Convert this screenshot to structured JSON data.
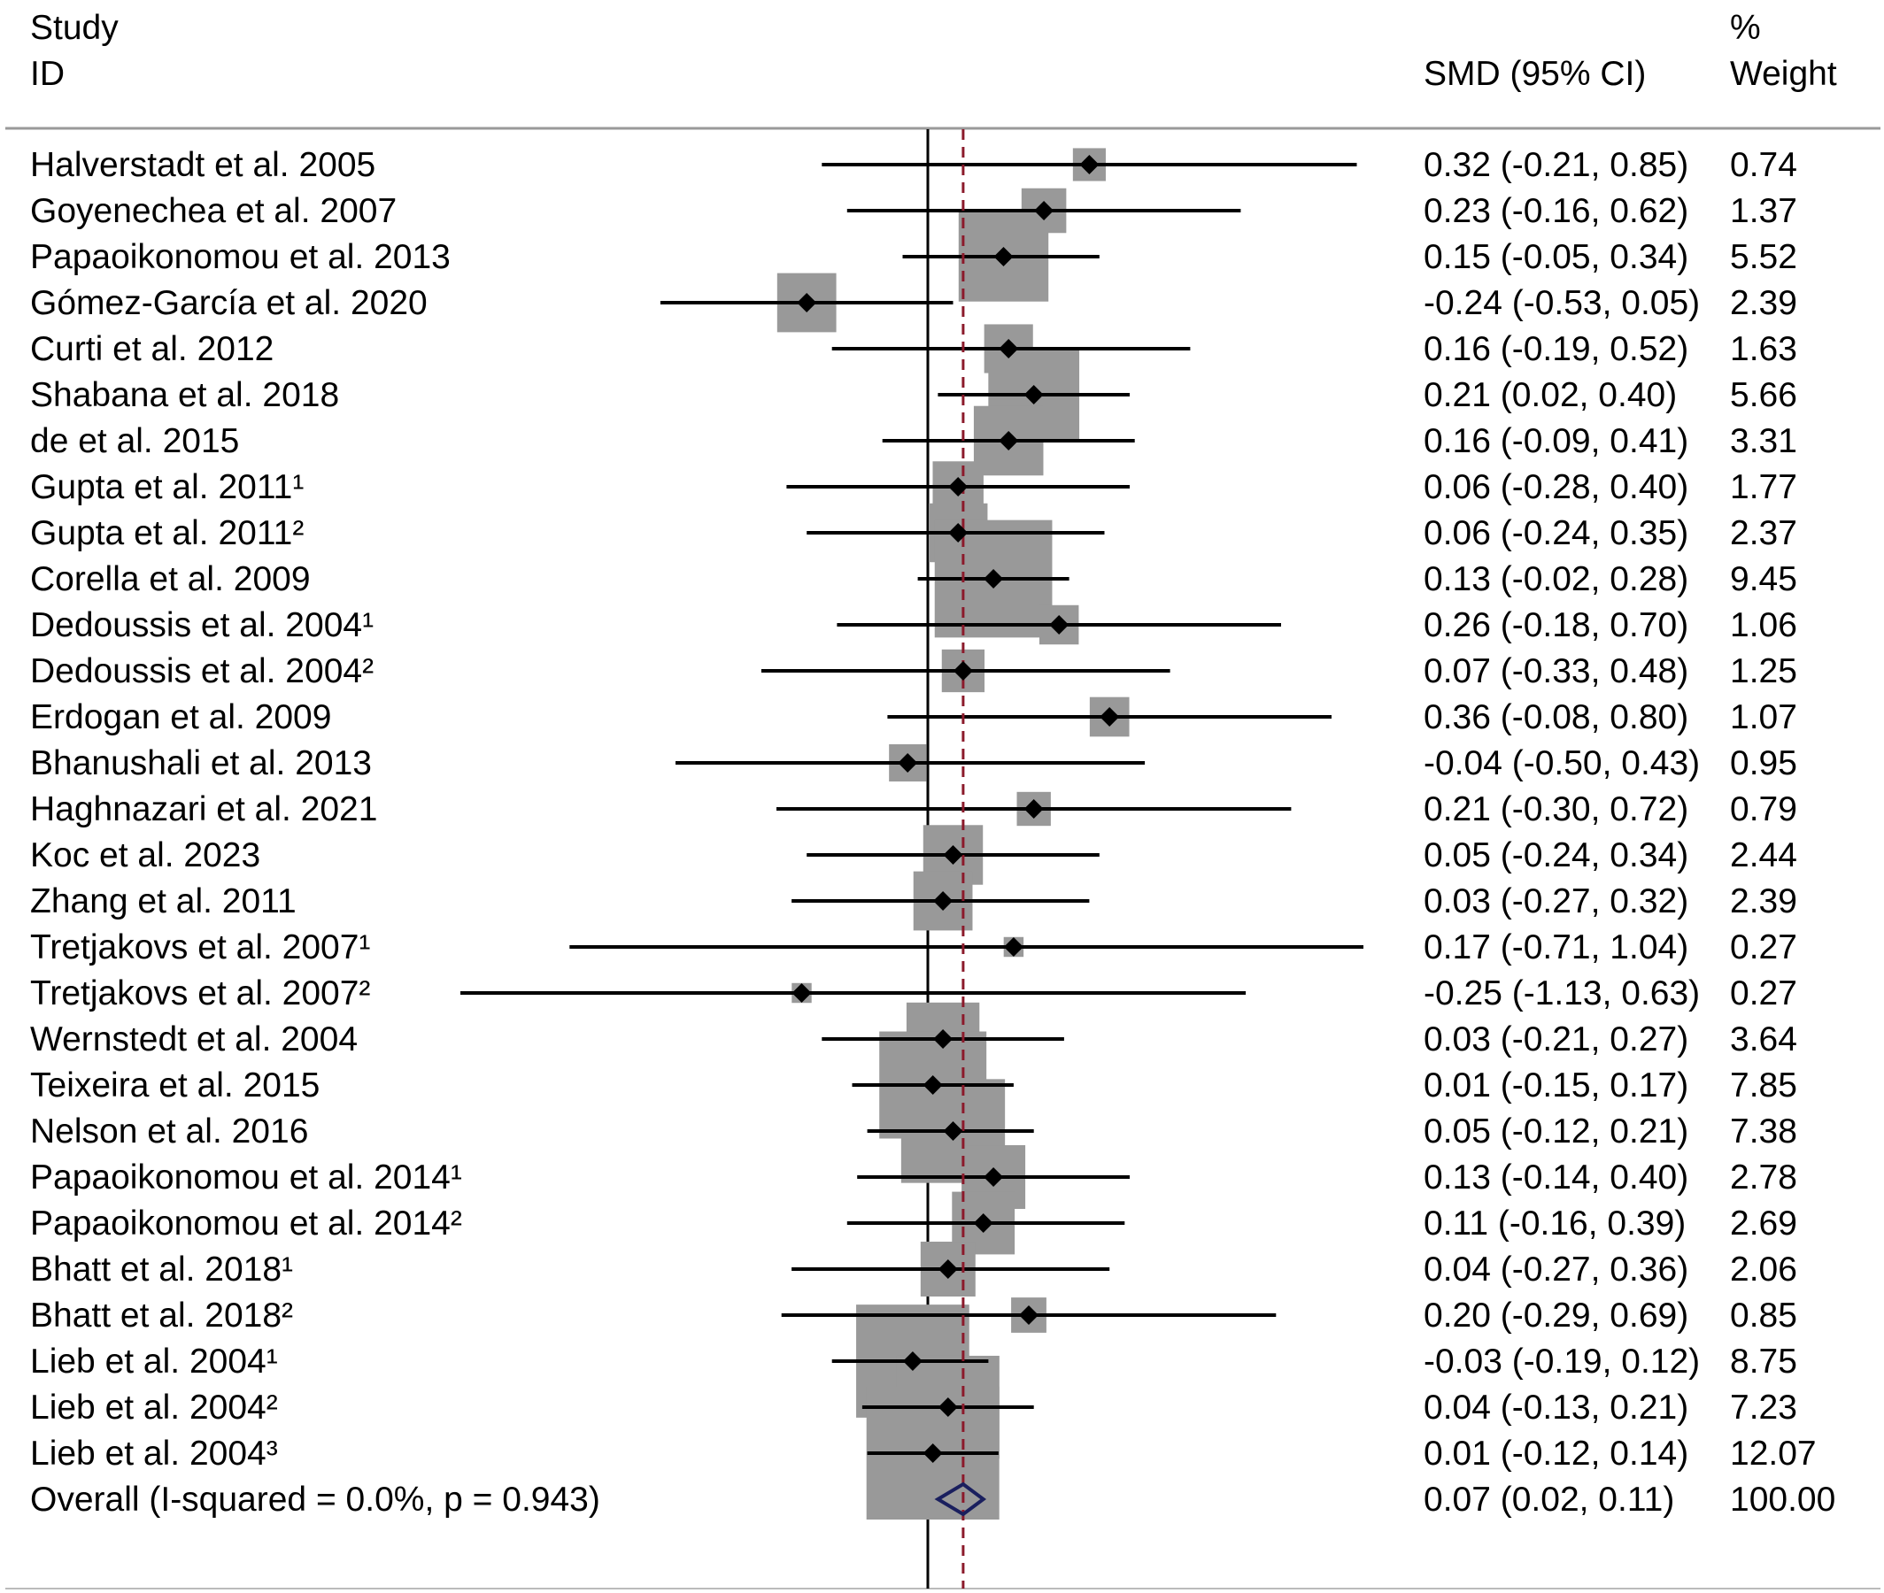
{
  "header": {
    "study_line1": "Study",
    "study_line2": "ID",
    "smd_label": "SMD (95% CI)",
    "weight_line1": "%",
    "weight_line2": "Weight"
  },
  "chart_data": {
    "type": "forest",
    "effect_measure": "SMD",
    "null_line": 0,
    "overall_line": 0.07,
    "xlim": [
      -0.55,
      1.05
    ],
    "colors": {
      "box": "#999999",
      "line": "#000000",
      "overall_diamond": "#1a1f5e",
      "overall_ref": "#8b1a2b"
    },
    "studies": [
      {
        "label": "Halverstadt et al. 2005",
        "est": 0.32,
        "lo": -0.21,
        "hi": 0.85,
        "ci_text": "0.32 (-0.21, 0.85)",
        "weight": 0.74,
        "weight_text": "0.74"
      },
      {
        "label": "Goyenechea et al. 2007",
        "est": 0.23,
        "lo": -0.16,
        "hi": 0.62,
        "ci_text": "0.23 (-0.16, 0.62)",
        "weight": 1.37,
        "weight_text": "1.37"
      },
      {
        "label": "Papaoikonomou et al. 2013",
        "est": 0.15,
        "lo": -0.05,
        "hi": 0.34,
        "ci_text": "0.15 (-0.05, 0.34)",
        "weight": 5.52,
        "weight_text": "5.52"
      },
      {
        "label": "Gómez-García et al. 2020",
        "est": -0.24,
        "lo": -0.53,
        "hi": 0.05,
        "ci_text": "-0.24 (-0.53, 0.05)",
        "weight": 2.39,
        "weight_text": "2.39"
      },
      {
        "label": "Curti et al. 2012",
        "est": 0.16,
        "lo": -0.19,
        "hi": 0.52,
        "ci_text": "0.16 (-0.19, 0.52)",
        "weight": 1.63,
        "weight_text": "1.63"
      },
      {
        "label": "Shabana et al. 2018",
        "est": 0.21,
        "lo": 0.02,
        "hi": 0.4,
        "ci_text": "0.21 (0.02, 0.40)",
        "weight": 5.66,
        "weight_text": "5.66"
      },
      {
        "label": "de et al. 2015",
        "est": 0.16,
        "lo": -0.09,
        "hi": 0.41,
        "ci_text": "0.16 (-0.09, 0.41)",
        "weight": 3.31,
        "weight_text": "3.31"
      },
      {
        "label": "Gupta et al. 2011¹",
        "est": 0.06,
        "lo": -0.28,
        "hi": 0.4,
        "ci_text": "0.06 (-0.28, 0.40)",
        "weight": 1.77,
        "weight_text": "1.77"
      },
      {
        "label": "Gupta et al. 2011²",
        "est": 0.06,
        "lo": -0.24,
        "hi": 0.35,
        "ci_text": "0.06 (-0.24, 0.35)",
        "weight": 2.37,
        "weight_text": "2.37"
      },
      {
        "label": "Corella et al. 2009",
        "est": 0.13,
        "lo": -0.02,
        "hi": 0.28,
        "ci_text": "0.13 (-0.02, 0.28)",
        "weight": 9.45,
        "weight_text": "9.45"
      },
      {
        "label": "Dedoussis et al. 2004¹",
        "est": 0.26,
        "lo": -0.18,
        "hi": 0.7,
        "ci_text": "0.26 (-0.18, 0.70)",
        "weight": 1.06,
        "weight_text": "1.06"
      },
      {
        "label": "Dedoussis et al. 2004²",
        "est": 0.07,
        "lo": -0.33,
        "hi": 0.48,
        "ci_text": "0.07 (-0.33, 0.48)",
        "weight": 1.25,
        "weight_text": "1.25"
      },
      {
        "label": "Erdogan et al. 2009",
        "est": 0.36,
        "lo": -0.08,
        "hi": 0.8,
        "ci_text": "0.36 (-0.08, 0.80)",
        "weight": 1.07,
        "weight_text": "1.07"
      },
      {
        "label": "Bhanushali et al. 2013",
        "est": -0.04,
        "lo": -0.5,
        "hi": 0.43,
        "ci_text": "-0.04 (-0.50, 0.43)",
        "weight": 0.95,
        "weight_text": "0.95"
      },
      {
        "label": "Haghnazari et al. 2021",
        "est": 0.21,
        "lo": -0.3,
        "hi": 0.72,
        "ci_text": "0.21 (-0.30, 0.72)",
        "weight": 0.79,
        "weight_text": "0.79"
      },
      {
        "label": "Koc et al. 2023",
        "est": 0.05,
        "lo": -0.24,
        "hi": 0.34,
        "ci_text": "0.05 (-0.24, 0.34)",
        "weight": 2.44,
        "weight_text": "2.44"
      },
      {
        "label": "Zhang et al. 2011",
        "est": 0.03,
        "lo": -0.27,
        "hi": 0.32,
        "ci_text": "0.03 (-0.27, 0.32)",
        "weight": 2.39,
        "weight_text": "2.39"
      },
      {
        "label": "Tretjakovs et al. 2007¹",
        "est": 0.17,
        "lo": -0.71,
        "hi": 1.04,
        "ci_text": "0.17 (-0.71, 1.04)",
        "weight": 0.27,
        "weight_text": "0.27"
      },
      {
        "label": "Tretjakovs et al. 2007²",
        "est": -0.25,
        "lo": -1.13,
        "hi": 0.63,
        "ci_text": "-0.25 (-1.13, 0.63)",
        "weight": 0.27,
        "weight_text": "0.27"
      },
      {
        "label": "Wernstedt et al. 2004",
        "est": 0.03,
        "lo": -0.21,
        "hi": 0.27,
        "ci_text": "0.03 (-0.21, 0.27)",
        "weight": 3.64,
        "weight_text": "3.64"
      },
      {
        "label": "Teixeira et al. 2015",
        "est": 0.01,
        "lo": -0.15,
        "hi": 0.17,
        "ci_text": "0.01 (-0.15, 0.17)",
        "weight": 7.85,
        "weight_text": "7.85"
      },
      {
        "label": "Nelson et al. 2016",
        "est": 0.05,
        "lo": -0.12,
        "hi": 0.21,
        "ci_text": "0.05 (-0.12, 0.21)",
        "weight": 7.38,
        "weight_text": "7.38"
      },
      {
        "label": "Papaoikonomou et al. 2014¹",
        "est": 0.13,
        "lo": -0.14,
        "hi": 0.4,
        "ci_text": "0.13 (-0.14, 0.40)",
        "weight": 2.78,
        "weight_text": "2.78"
      },
      {
        "label": "Papaoikonomou et al. 2014²",
        "est": 0.11,
        "lo": -0.16,
        "hi": 0.39,
        "ci_text": "0.11 (-0.16, 0.39)",
        "weight": 2.69,
        "weight_text": "2.69"
      },
      {
        "label": "Bhatt et al. 2018¹",
        "est": 0.04,
        "lo": -0.27,
        "hi": 0.36,
        "ci_text": "0.04 (-0.27, 0.36)",
        "weight": 2.06,
        "weight_text": "2.06"
      },
      {
        "label": "Bhatt et al. 2018²",
        "est": 0.2,
        "lo": -0.29,
        "hi": 0.69,
        "ci_text": "0.20 (-0.29, 0.69)",
        "weight": 0.85,
        "weight_text": "0.85"
      },
      {
        "label": "Lieb et al. 2004¹",
        "est": -0.03,
        "lo": -0.19,
        "hi": 0.12,
        "ci_text": "-0.03 (-0.19, 0.12)",
        "weight": 8.75,
        "weight_text": "8.75"
      },
      {
        "label": "Lieb et al. 2004²",
        "est": 0.04,
        "lo": -0.13,
        "hi": 0.21,
        "ci_text": "0.04 (-0.13, 0.21)",
        "weight": 7.23,
        "weight_text": "7.23"
      },
      {
        "label": "Lieb et al. 2004³",
        "est": 0.01,
        "lo": -0.12,
        "hi": 0.14,
        "ci_text": "0.01 (-0.12, 0.14)",
        "weight": 12.07,
        "weight_text": "12.07"
      }
    ],
    "overall": {
      "label": "Overall  (I-squared = 0.0%, p = 0.943)",
      "est": 0.07,
      "lo": 0.02,
      "hi": 0.11,
      "ci_text": "0.07 (0.02, 0.11)",
      "weight_text": "100.00"
    }
  }
}
